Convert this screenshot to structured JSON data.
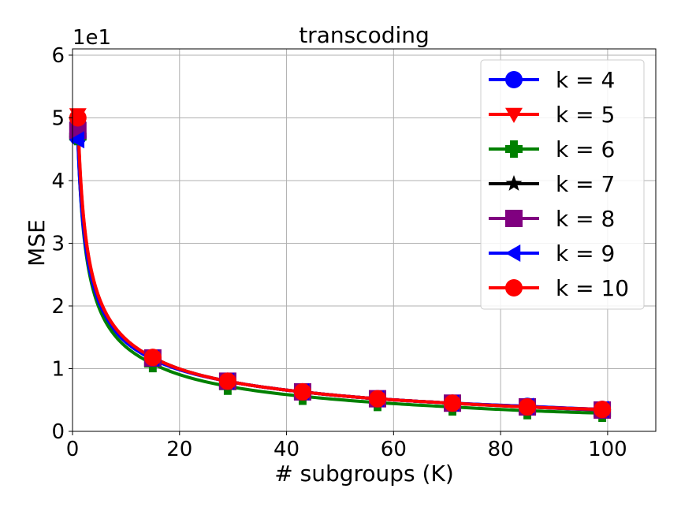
{
  "chart_data": {
    "type": "line",
    "title": "transcoding",
    "xlabel": "# subgroups (K)",
    "ylabel": "MSE",
    "y_offset_label": "1e1",
    "xlim": [
      0,
      109
    ],
    "ylim": [
      0,
      6.1
    ],
    "x_ticks": [
      0,
      20,
      40,
      60,
      80,
      100
    ],
    "y_ticks": [
      0,
      1,
      2,
      3,
      4,
      5,
      6
    ],
    "grid": true,
    "legend_position": "top-right",
    "marker_x": [
      1,
      15,
      29,
      43,
      57,
      71,
      85,
      99
    ],
    "series": [
      {
        "name": "k = 4",
        "color": "#0000ff",
        "marker": "circle",
        "values": [
          4.7,
          1.15,
          0.8,
          0.63,
          0.52,
          0.45,
          0.4,
          0.35
        ]
      },
      {
        "name": "k = 5",
        "color": "#ff0000",
        "marker": "triangle-down",
        "values": [
          5.05,
          1.18,
          0.8,
          0.63,
          0.52,
          0.45,
          0.39,
          0.35
        ]
      },
      {
        "name": "k = 6",
        "color": "#008000",
        "marker": "plus",
        "values": [
          4.7,
          1.08,
          0.72,
          0.56,
          0.46,
          0.39,
          0.33,
          0.29
        ]
      },
      {
        "name": "k = 7",
        "color": "#000000",
        "marker": "star",
        "values": [
          4.9,
          1.18,
          0.8,
          0.63,
          0.52,
          0.45,
          0.39,
          0.34
        ]
      },
      {
        "name": "k = 8",
        "color": "#800080",
        "marker": "square",
        "values": [
          4.8,
          1.17,
          0.8,
          0.63,
          0.52,
          0.45,
          0.39,
          0.34
        ]
      },
      {
        "name": "k = 9",
        "color": "#0000ff",
        "marker": "triangle-left",
        "values": [
          4.65,
          1.17,
          0.8,
          0.63,
          0.52,
          0.45,
          0.4,
          0.35
        ]
      },
      {
        "name": "k = 10",
        "color": "#ff0000",
        "marker": "circle",
        "values": [
          5.0,
          1.18,
          0.8,
          0.63,
          0.52,
          0.45,
          0.39,
          0.35
        ]
      }
    ]
  }
}
